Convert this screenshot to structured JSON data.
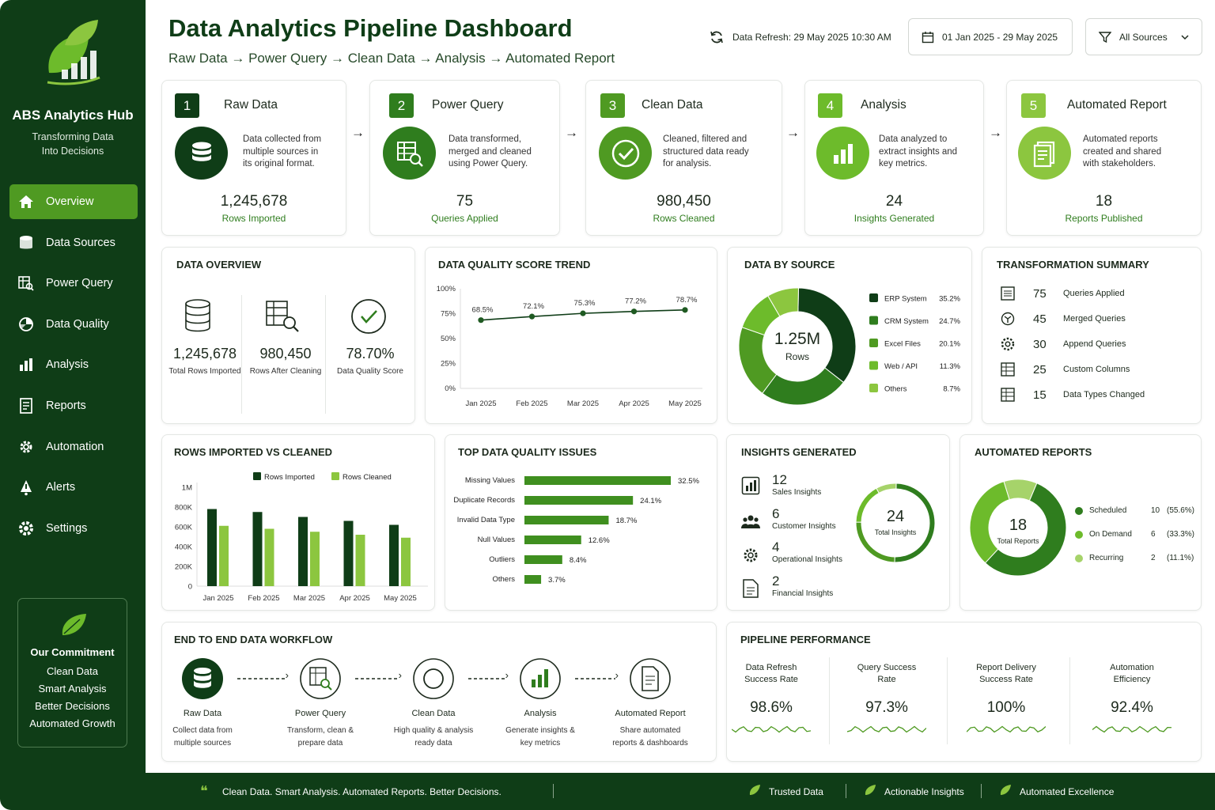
{
  "brand": {
    "name": "ABS Analytics Hub",
    "tagline_line1": "Transforming Data",
    "tagline_line2": "Into Decisions"
  },
  "nav": [
    {
      "label": "Overview",
      "icon": "home-icon",
      "active": true
    },
    {
      "label": "Data Sources",
      "icon": "database-icon"
    },
    {
      "label": "Power Query",
      "icon": "power-query-icon"
    },
    {
      "label": "Data Quality",
      "icon": "quality-icon"
    },
    {
      "label": "Analysis",
      "icon": "bar-chart-icon"
    },
    {
      "label": "Reports",
      "icon": "report-icon"
    },
    {
      "label": "Automation",
      "icon": "gear-icon"
    },
    {
      "label": "Alerts",
      "icon": "bell-icon"
    },
    {
      "label": "Settings",
      "icon": "settings-icon"
    }
  ],
  "commitment": {
    "title": "Our Commitment",
    "lines": [
      "Clean Data",
      "Smart Analysis",
      "Better Decisions",
      "Automated Growth"
    ]
  },
  "header": {
    "title": "Data Analytics Pipeline Dashboard",
    "subtitle": "Raw Data → Power Query → Clean Data → Analysis → Automated Report",
    "refresh": "Data Refresh: 29 May 2025  10:30 AM",
    "date_range": "01 Jan 2025 - 29 May 2025",
    "source_filter": "All Sources"
  },
  "steps": [
    {
      "num": "1",
      "title": "Raw Data",
      "desc1": "Data collected from",
      "desc2": "multiple sources in",
      "desc3": "its original format.",
      "value": "1,245,678",
      "label": "Rows Imported"
    },
    {
      "num": "2",
      "title": "Power Query",
      "desc1": "Data transformed,",
      "desc2": "merged and cleaned",
      "desc3": "using Power Query.",
      "value": "75",
      "label": "Queries Applied"
    },
    {
      "num": "3",
      "title": "Clean Data",
      "desc1": "Cleaned, filtered and",
      "desc2": "structured data ready",
      "desc3": "for analysis.",
      "value": "980,450",
      "label": "Rows Cleaned"
    },
    {
      "num": "4",
      "title": "Analysis",
      "desc1": "Data analyzed to",
      "desc2": "extract insights and",
      "desc3": "key metrics.",
      "value": "24",
      "label": "Insights Generated"
    },
    {
      "num": "5",
      "title": "Automated Report",
      "desc1": "Automated reports",
      "desc2": "created and shared",
      "desc3": "with stakeholders.",
      "value": "18",
      "label": "Reports Published"
    }
  ],
  "overview": {
    "title": "DATA OVERVIEW",
    "items": [
      {
        "value": "1,245,678",
        "label": "Total Rows Imported"
      },
      {
        "value": "980,450",
        "label": "Rows After Cleaning"
      },
      {
        "value": "78.70%",
        "label": "Data Quality Score"
      }
    ]
  },
  "quality_trend": {
    "title": "DATA QUALITY SCORE TREND"
  },
  "by_source": {
    "title": "DATA BY SOURCE",
    "center_value": "1.25M",
    "center_label": "Rows"
  },
  "transform": {
    "title": "TRANSFORMATION SUMMARY",
    "items": [
      {
        "n": "75",
        "label": "Queries Applied"
      },
      {
        "n": "45",
        "label": "Merged Queries"
      },
      {
        "n": "30",
        "label": "Append Queries"
      },
      {
        "n": "25",
        "label": "Custom Columns"
      },
      {
        "n": "15",
        "label": "Data Types Changed"
      }
    ]
  },
  "rows_chart": {
    "title": "ROWS IMPORTED VS CLEANED"
  },
  "issues": {
    "title": "TOP DATA QUALITY ISSUES"
  },
  "insights": {
    "title": "INSIGHTS GENERATED",
    "center_value": "24",
    "center_label": "Total Insights",
    "items": [
      {
        "n": "12",
        "label": "Sales Insights"
      },
      {
        "n": "6",
        "label": "Customer Insights"
      },
      {
        "n": "4",
        "label": "Operational Insights"
      },
      {
        "n": "2",
        "label": "Financial Insights"
      }
    ]
  },
  "reports": {
    "title": "AUTOMATED REPORTS",
    "center_value": "18",
    "center_label": "Total Reports",
    "items": [
      {
        "label": "Scheduled",
        "count": "10",
        "pct": "(55.6%)"
      },
      {
        "label": "On Demand",
        "count": "6",
        "pct": "(33.3%)"
      },
      {
        "label": "Recurring",
        "count": "2",
        "pct": "(11.1%)"
      }
    ]
  },
  "workflow": {
    "title": "END TO END DATA WORKFLOW",
    "steps": [
      {
        "title": "Raw Data",
        "d1": "Collect data from",
        "d2": "multiple sources"
      },
      {
        "title": "Power Query",
        "d1": "Transform, clean &",
        "d2": "prepare data"
      },
      {
        "title": "Clean Data",
        "d1": "High quality & analysis",
        "d2": "ready data"
      },
      {
        "title": "Analysis",
        "d1": "Generate insights &",
        "d2": "key metrics"
      },
      {
        "title": "Automated Report",
        "d1": "Share automated",
        "d2": "reports & dashboards"
      }
    ]
  },
  "performance": {
    "title": "PIPELINE PERFORMANCE",
    "items": [
      {
        "l1": "Data Refresh",
        "l2": "Success Rate",
        "value": "98.6%"
      },
      {
        "l1": "Query Success",
        "l2": "Rate",
        "value": "97.3%"
      },
      {
        "l1": "Report Delivery",
        "l2": "Success Rate",
        "value": "100%"
      },
      {
        "l1": "Automation",
        "l2": "Efficiency",
        "value": "92.4%"
      }
    ]
  },
  "footer": {
    "quote": "Clean Data. Smart Analysis. Automated Reports. Better Decisions.",
    "tags": [
      "Trusted Data",
      "Actionable Insights",
      "Automated Excellence"
    ]
  },
  "colors": {
    "dark": "#0f3d17",
    "mid": "#2f7d1e",
    "accent": "#4f9a22",
    "light": "#8cc63f"
  },
  "chart_data": [
    {
      "type": "line",
      "title": "DATA QUALITY SCORE TREND",
      "x": [
        "Jan 2025",
        "Feb 2025",
        "Mar 2025",
        "Apr 2025",
        "May 2025"
      ],
      "values": [
        68.5,
        72.1,
        75.3,
        77.2,
        78.7
      ],
      "data_labels": [
        "68.5%",
        "72.1%",
        "75.3%",
        "77.2%",
        "78.7%"
      ],
      "y_ticks": [
        "0%",
        "25%",
        "50%",
        "75%",
        "100%"
      ],
      "ylim": [
        0,
        100
      ]
    },
    {
      "type": "pie",
      "title": "DATA BY SOURCE",
      "labels": [
        "ERP System",
        "CRM System",
        "Excel Files",
        "Web / API",
        "Others"
      ],
      "values": [
        35.2,
        24.7,
        20.1,
        11.3,
        8.7
      ],
      "value_labels": [
        "35.2%",
        "24.7%",
        "20.1%",
        "11.3%",
        "8.7%"
      ]
    },
    {
      "type": "bar",
      "title": "ROWS IMPORTED VS CLEANED",
      "categories": [
        "Jan 2025",
        "Feb 2025",
        "Mar 2025",
        "Apr 2025",
        "May 2025"
      ],
      "series": [
        {
          "name": "Rows Imported",
          "values": [
            780000,
            750000,
            700000,
            660000,
            620000
          ]
        },
        {
          "name": "Rows Cleaned",
          "values": [
            610000,
            580000,
            550000,
            520000,
            490000
          ]
        }
      ],
      "y_ticks": [
        "0",
        "200K",
        "400K",
        "600K",
        "800K",
        "1M"
      ],
      "ylim": [
        0,
        1000000
      ]
    },
    {
      "type": "bar",
      "title": "TOP DATA QUALITY ISSUES",
      "categories": [
        "Missing Values",
        "Duplicate Records",
        "Invalid Data Type",
        "Null Values",
        "Outliers",
        "Others"
      ],
      "values": [
        32.5,
        24.1,
        18.7,
        12.6,
        8.4,
        3.7
      ],
      "value_labels": [
        "32.5%",
        "24.1%",
        "18.7%",
        "12.6%",
        "8.4%",
        "3.7%"
      ]
    },
    {
      "type": "pie",
      "title": "INSIGHTS GENERATED",
      "labels": [
        "Sales Insights",
        "Customer Insights",
        "Operational Insights",
        "Financial Insights"
      ],
      "values": [
        12,
        6,
        4,
        2
      ]
    },
    {
      "type": "pie",
      "title": "AUTOMATED REPORTS",
      "labels": [
        "Scheduled",
        "On Demand",
        "Recurring"
      ],
      "values": [
        10,
        6,
        2
      ]
    }
  ]
}
